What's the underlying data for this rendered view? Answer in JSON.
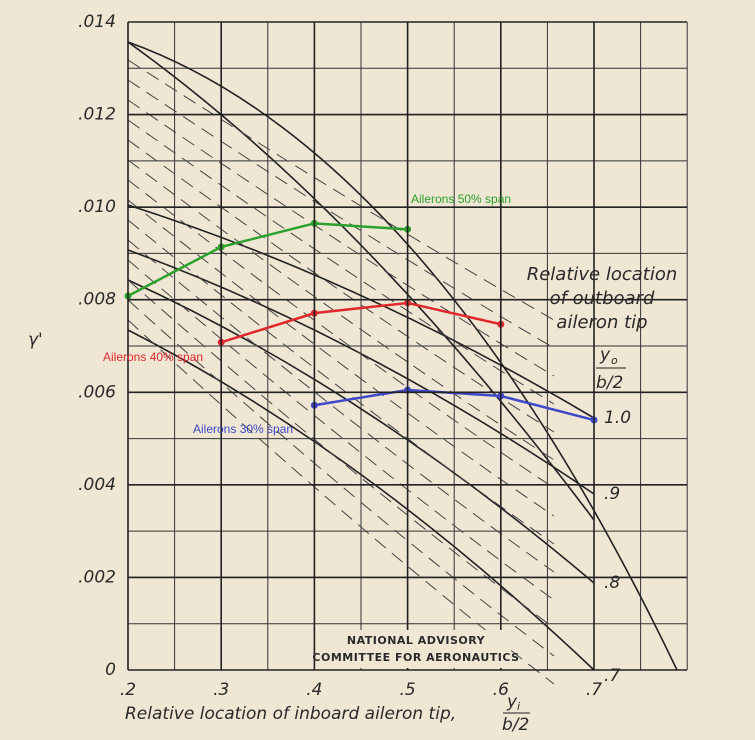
{
  "chart_data": {
    "type": "line",
    "y_label": "γ'",
    "x_label": "Relative location of inboard aileron tip,",
    "x_label_fraction": [
      "y",
      "i",
      "b/2"
    ],
    "annotation": [
      "Relative location",
      "of outboard",
      "aileron tip"
    ],
    "right_fraction": [
      "y",
      "o",
      "b/2"
    ],
    "right_labels": [
      "1.0",
      ".9",
      ".8",
      ".7"
    ],
    "stamp": [
      "NATIONAL ADVISORY",
      "COMMITTEE FOR AERONAUTICS"
    ],
    "xlim": [
      0.2,
      0.7
    ],
    "ylim": [
      0,
      0.014
    ],
    "xticks": [
      {
        "value": 0.2,
        "label": ".2"
      },
      {
        "value": 0.3,
        "label": ".3"
      },
      {
        "value": 0.4,
        "label": ".4"
      },
      {
        "value": 0.5,
        "label": ".5"
      },
      {
        "value": 0.6,
        "label": ".6"
      },
      {
        "value": 0.7,
        "label": ".7"
      }
    ],
    "yticks": [
      0,
      {
        "value": 0.002,
        "label": ".002"
      },
      {
        "value": 0.004,
        "label": ".004"
      },
      {
        "value": 0.006,
        "label": ".006"
      },
      {
        "value": 0.008,
        "label": ".008"
      },
      {
        "value": 0.01,
        "label": ".010"
      },
      {
        "value": 0.012,
        "label": ".012"
      },
      {
        "value": 0.014,
        "label": ".014"
      }
    ],
    "grid": true,
    "series": [
      {
        "name": "Ailerons 50% span",
        "color": "#2ca02c",
        "x": [
          0.2,
          0.3,
          0.4,
          0.5
        ],
        "values": [
          0.00808,
          0.00914,
          0.00965,
          0.00952
        ]
      },
      {
        "name": "Ailerons 40% span",
        "color": "#e0282c",
        "x": [
          0.3,
          0.4,
          0.5,
          0.6
        ],
        "values": [
          0.00708,
          0.00771,
          0.00793,
          0.00747
        ]
      },
      {
        "name": "Ailerons 30% span",
        "color": "#3f48c8",
        "x": [
          0.4,
          0.5,
          0.6,
          0.7
        ],
        "values": [
          0.00572,
          0.00605,
          0.00592,
          0.0054
        ]
      }
    ]
  }
}
